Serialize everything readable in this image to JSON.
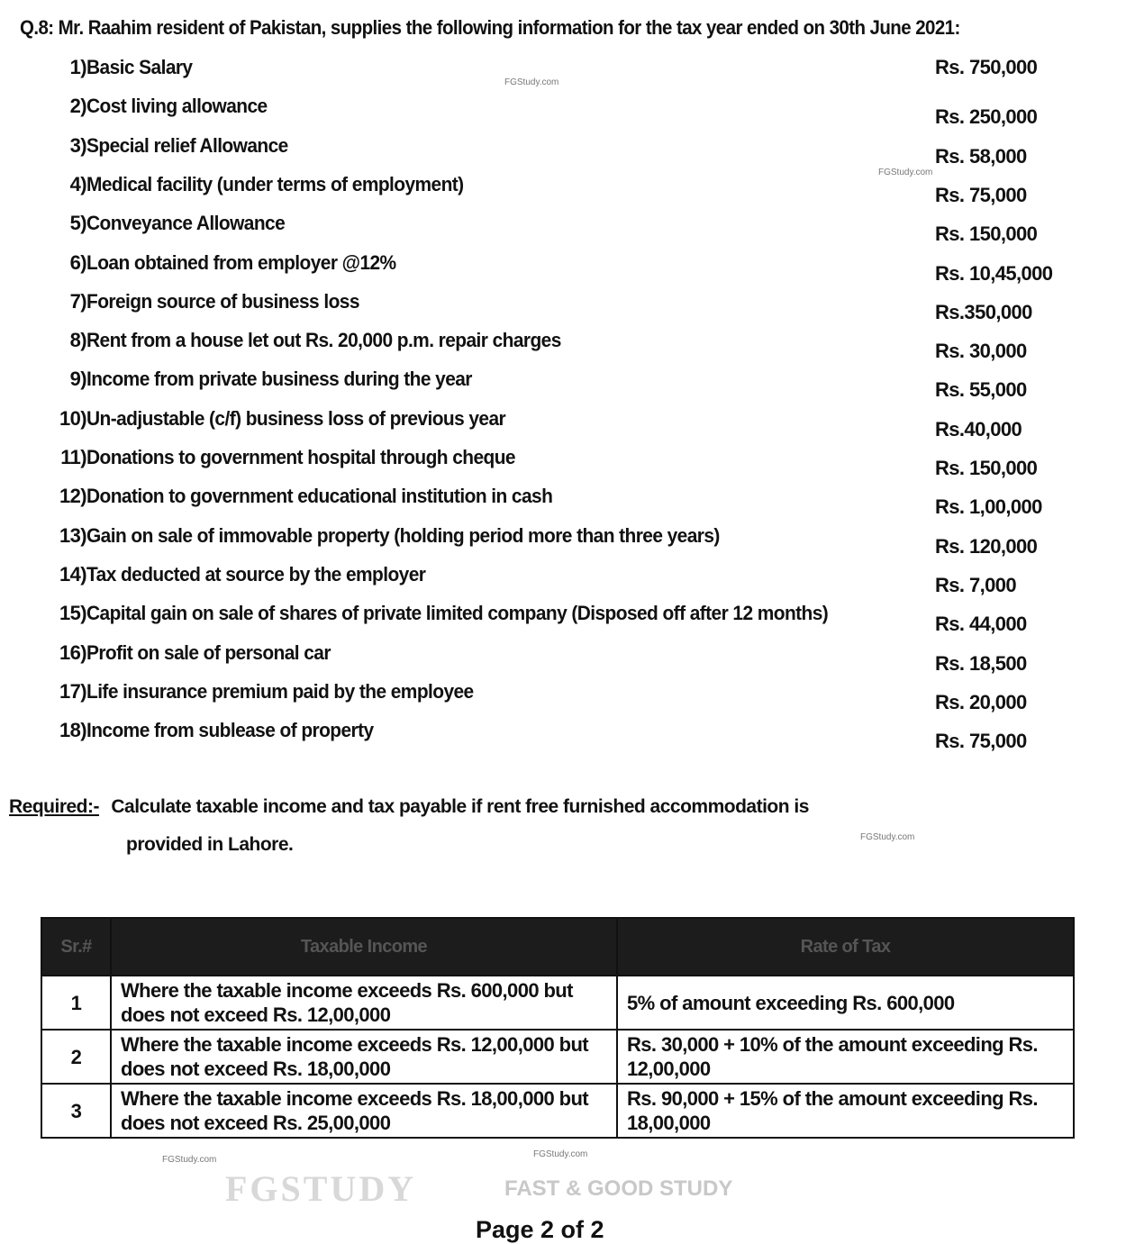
{
  "question": "Q.8: Mr. Raahim resident of Pakistan, supplies the following information for the tax year ended on 30th June 2021:",
  "items": [
    {
      "num": "1)",
      "label": "Basic Salary",
      "value": "Rs. 750,000"
    },
    {
      "num": "2)",
      "label": "Cost living allowance",
      "value": "Rs. 250,000"
    },
    {
      "num": "3)",
      "label": "Special relief Allowance",
      "value": "Rs. 58,000"
    },
    {
      "num": "4)",
      "label": "Medical facility (under terms of employment)",
      "value": "Rs. 75,000"
    },
    {
      "num": "5)",
      "label": "Conveyance Allowance",
      "value": "Rs. 150,000"
    },
    {
      "num": "6)",
      "label": "Loan obtained from employer @12%",
      "value": "Rs. 10,45,000"
    },
    {
      "num": "7)",
      "label": "Foreign source of business loss",
      "value": "Rs.350,000"
    },
    {
      "num": "8)",
      "label": "Rent from a house let out Rs. 20,000 p.m. repair charges",
      "value": "Rs. 30,000"
    },
    {
      "num": "9)",
      "label": "Income from private business during the year",
      "value": "Rs. 55,000"
    },
    {
      "num": "10)",
      "label": "Un-adjustable (c/f) business loss of previous year",
      "value": "Rs.40,000"
    },
    {
      "num": "11)",
      "label": "Donations to government hospital through cheque",
      "value": "Rs. 150,000"
    },
    {
      "num": "12)",
      "label": "Donation to government educational institution in cash",
      "value": "Rs. 1,00,000"
    },
    {
      "num": "13)",
      "label": "Gain on sale of immovable property (holding period more than three years)",
      "value": "Rs. 120,000"
    },
    {
      "num": "14)",
      "label": "Tax deducted at source by the employer",
      "value": "Rs. 7,000"
    },
    {
      "num": "15)",
      "label": "Capital gain on sale of shares of private limited company (Disposed off after 12 months)",
      "value": "Rs. 44,000"
    },
    {
      "num": "16)",
      "label": "Profit on sale of personal car",
      "value": "Rs. 18,500"
    },
    {
      "num": "17)",
      "label": "Life insurance premium paid by the employee",
      "value": "Rs. 20,000"
    },
    {
      "num": "18)",
      "label": "Income from sublease of property",
      "value": "Rs. 75,000"
    }
  ],
  "required": {
    "label": "Required:-",
    "line1": "Calculate taxable income and tax payable if rent free furnished accommodation is",
    "line2": "provided in Lahore."
  },
  "table": {
    "headers": [
      "Sr.#",
      "Taxable Income",
      "Rate of Tax"
    ],
    "rows": [
      {
        "sr": "1",
        "income": "Where the taxable income exceeds Rs. 600,000 but does not exceed Rs. 12,00,000",
        "rate": "5% of amount exceeding Rs. 600,000"
      },
      {
        "sr": "2",
        "income": "Where the taxable income exceeds Rs. 12,00,000 but does not exceed Rs. 18,00,000",
        "rate": "Rs. 30,000 + 10% of the amount exceeding Rs. 12,00,000"
      },
      {
        "sr": "3",
        "income": "Where the taxable income exceeds Rs. 18,00,000 but does not exceed Rs. 25,00,000",
        "rate": "Rs. 90,000 + 15% of the amount exceeding Rs. 18,00,000"
      }
    ]
  },
  "watermark": {
    "logo": "FGSTUDY",
    "tagline": "FAST & GOOD STUDY",
    "site": "FGStudy.com"
  },
  "footer": "Page 2 of 2"
}
